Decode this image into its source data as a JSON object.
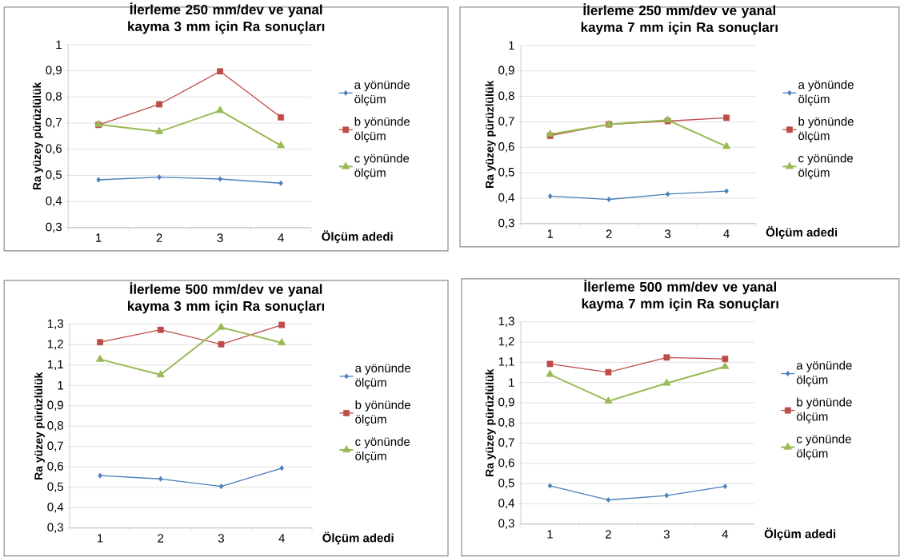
{
  "chart_data": [
    {
      "type": "line",
      "title": "İlerleme 250 mm/dev ve yanal kayma 3 mm için Ra sonuçları",
      "xlabel": "Ölçüm adedi",
      "ylabel": "Ra yüzey pürüzlülük",
      "categories": [
        "1",
        "2",
        "3",
        "4"
      ],
      "ylim": [
        0.3,
        1
      ],
      "yticks": [
        {
          "value": 0.3,
          "label": "0,3"
        },
        {
          "value": 0.4,
          "label": "0,4"
        },
        {
          "value": 0.5,
          "label": "0,5"
        },
        {
          "value": 0.6,
          "label": "0,6"
        },
        {
          "value": 0.7,
          "label": "0,7"
        },
        {
          "value": 0.8,
          "label": "0,8"
        },
        {
          "value": 0.9,
          "label": "0,9"
        },
        1
      ],
      "grid": "y",
      "legend": "right",
      "series": [
        {
          "name": "a yönünde ölçüm",
          "color": "#4a7ebb",
          "marker": "diamond",
          "values": [
            0.483,
            0.493,
            0.486,
            0.47
          ]
        },
        {
          "name": "b yönünde ölçüm",
          "color": "#be4b48",
          "marker": "square",
          "values": [
            0.693,
            0.772,
            0.898,
            0.722
          ]
        },
        {
          "name": "c yönünde ölçüm",
          "color": "#98b954",
          "marker": "triangle",
          "values": [
            0.695,
            0.667,
            0.748,
            0.614
          ]
        }
      ]
    },
    {
      "type": "line",
      "title": "İlerleme 250 mm/dev ve yanal kayma 7 mm için Ra sonuçları",
      "xlabel": "Ölçüm adedi",
      "ylabel": "Ra yüzey pürüzlülük",
      "categories": [
        "1",
        "2",
        "3",
        "4"
      ],
      "ylim": [
        0.3,
        1
      ],
      "yticks": [
        {
          "value": 0.3,
          "label": "0,3"
        },
        {
          "value": 0.4,
          "label": "0,4"
        },
        {
          "value": 0.5,
          "label": "0,5"
        },
        {
          "value": 0.6,
          "label": "0,6"
        },
        {
          "value": 0.7,
          "label": "0,7"
        },
        {
          "value": 0.8,
          "label": "0,8"
        },
        {
          "value": 0.9,
          "label": "0,9"
        },
        1
      ],
      "grid": "y",
      "legend": "right",
      "series": [
        {
          "name": "a yönünde ölçüm",
          "color": "#4a7ebb",
          "marker": "diamond",
          "values": [
            0.408,
            0.395,
            0.416,
            0.428
          ]
        },
        {
          "name": "b yönünde ölçüm",
          "color": "#be4b48",
          "marker": "square",
          "values": [
            0.645,
            0.69,
            0.703,
            0.716
          ]
        },
        {
          "name": "c yönünde ölçüm",
          "color": "#98b954",
          "marker": "triangle",
          "values": [
            0.651,
            0.69,
            0.707,
            0.603
          ]
        }
      ]
    },
    {
      "type": "line",
      "title": "İlerleme 500 mm/dev ve yanal kayma 3 mm için Ra sonuçları",
      "xlabel": "Ölçüm adedi",
      "ylabel": "Ra yüzey pürüzlülük",
      "categories": [
        "1",
        "2",
        "3",
        "4"
      ],
      "ylim": [
        0.3,
        1.3
      ],
      "yticks": [
        {
          "value": 0.3,
          "label": "0,3"
        },
        {
          "value": 0.4,
          "label": "0,4"
        },
        {
          "value": 0.5,
          "label": "0,5"
        },
        {
          "value": 0.6,
          "label": "0,6"
        },
        {
          "value": 0.7,
          "label": "0,7"
        },
        {
          "value": 0.8,
          "label": "0,8"
        },
        {
          "value": 0.9,
          "label": "0,9"
        },
        1,
        {
          "value": 1.1,
          "label": "1,1"
        },
        {
          "value": 1.2,
          "label": "1,2"
        },
        {
          "value": 1.3,
          "label": "1,3"
        }
      ],
      "grid": "y",
      "legend": "right",
      "series": [
        {
          "name": "a yönünde ölçüm",
          "color": "#4a7ebb",
          "marker": "diamond",
          "values": [
            0.557,
            0.541,
            0.504,
            0.594
          ]
        },
        {
          "name": "b yönünde ölçüm",
          "color": "#be4b48",
          "marker": "square",
          "values": [
            1.212,
            1.273,
            1.202,
            1.297
          ]
        },
        {
          "name": "c yönünde ölçüm",
          "color": "#98b954",
          "marker": "triangle",
          "values": [
            1.128,
            1.052,
            1.285,
            1.209
          ]
        }
      ]
    },
    {
      "type": "line",
      "title": "İlerleme 500 mm/dev ve yanal kayma 7 mm için Ra sonuçları",
      "xlabel": "Ölçüm adedi",
      "ylabel": "Ra yüzey pürüzlülük",
      "categories": [
        "1",
        "2",
        "3",
        "4"
      ],
      "ylim": [
        0.3,
        1.3
      ],
      "yticks": [
        {
          "value": 0.3,
          "label": "0,3"
        },
        {
          "value": 0.4,
          "label": "0,4"
        },
        {
          "value": 0.5,
          "label": "0,5"
        },
        {
          "value": 0.6,
          "label": "0,6"
        },
        {
          "value": 0.7,
          "label": "0,7"
        },
        {
          "value": 0.8,
          "label": "0,8"
        },
        {
          "value": 0.9,
          "label": "0,9"
        },
        1,
        {
          "value": 1.1,
          "label": "1,1"
        },
        {
          "value": 1.2,
          "label": "1,2"
        },
        {
          "value": 1.3,
          "label": "1,3"
        }
      ],
      "grid": "y",
      "legend": "right",
      "series": [
        {
          "name": "a yönünde ölçüm",
          "color": "#4a7ebb",
          "marker": "diamond",
          "values": [
            0.489,
            0.419,
            0.441,
            0.486
          ]
        },
        {
          "name": "b yönünde ölçüm",
          "color": "#be4b48",
          "marker": "square",
          "values": [
            1.092,
            1.051,
            1.124,
            1.117
          ]
        },
        {
          "name": "c yönünde ölçüm",
          "color": "#98b954",
          "marker": "triangle",
          "values": [
            1.04,
            0.908,
            0.997,
            1.079
          ]
        }
      ]
    }
  ]
}
